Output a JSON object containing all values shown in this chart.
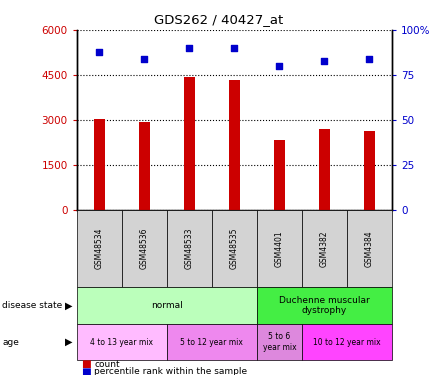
{
  "title": "GDS262 / 40427_at",
  "samples": [
    "GSM48534",
    "GSM48536",
    "GSM48533",
    "GSM48535",
    "GSM4401",
    "GSM4382",
    "GSM4384"
  ],
  "counts": [
    3050,
    2950,
    4430,
    4350,
    2350,
    2700,
    2650
  ],
  "percentiles": [
    88,
    84,
    90,
    90,
    80,
    83,
    84
  ],
  "bar_color": "#cc0000",
  "dot_color": "#0000cc",
  "ylim_left": [
    0,
    6000
  ],
  "ylim_right": [
    0,
    100
  ],
  "yticks_left": [
    0,
    1500,
    3000,
    4500,
    6000
  ],
  "yticks_right": [
    0,
    25,
    50,
    75,
    100
  ],
  "left_label_color": "#cc0000",
  "right_label_color": "#0000cc",
  "grid_color": "#000000",
  "normal_color": "#bbffbb",
  "duchenne_color": "#44ee44",
  "age_color1": "#ffbbff",
  "age_color2": "#ee88ee",
  "age_color3": "#dd88dd",
  "age_color4": "#ff44ff",
  "sample_box_color": "#d3d3d3",
  "ds_groups": [
    [
      0,
      4,
      "#bbffbb",
      "normal"
    ],
    [
      4,
      7,
      "#44ee44",
      "Duchenne muscular\ndystrophy"
    ]
  ],
  "age_groups": [
    [
      0,
      2,
      "#ffbbff",
      "4 to 13 year mix"
    ],
    [
      2,
      4,
      "#ee88ee",
      "5 to 12 year mix"
    ],
    [
      4,
      5,
      "#dd88dd",
      "5 to 6\nyear mix"
    ],
    [
      5,
      7,
      "#ff44ff",
      "10 to 12 year mix"
    ]
  ]
}
